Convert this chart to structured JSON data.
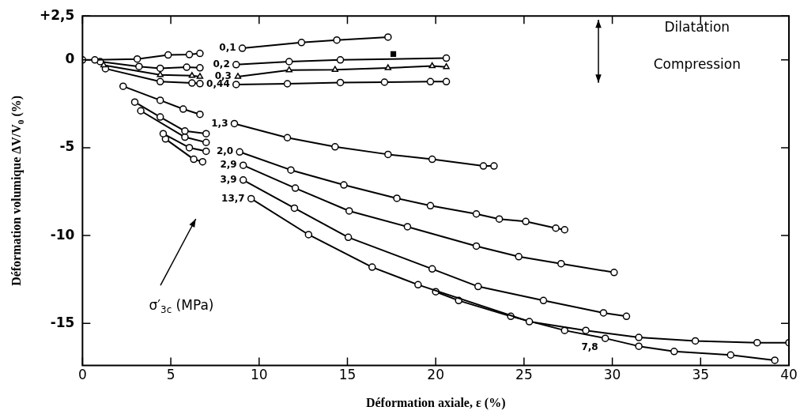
{
  "chart_data": {
    "type": "line",
    "xlabel": "Déformation axiale, ε (%)",
    "ylabel": "Déformation volumique ΔV/V$_{0}$ (%)",
    "xlim": [
      0,
      40
    ],
    "xticks": [
      0,
      5,
      10,
      15,
      20,
      25,
      30,
      35,
      40
    ],
    "ylim": [
      -17.4,
      2.5
    ],
    "yticks": [
      {
        "value": 2.5,
        "label": "+2,5"
      },
      0,
      -5,
      -10,
      -15
    ],
    "grid": false,
    "legend": false,
    "marker": "circle",
    "line_style": "solid",
    "annotations": [
      "Dilatation",
      "Compression",
      "σ′$_{3c}$ (MPa)"
    ],
    "series": [
      {
        "name": "0,1",
        "color": "#000000",
        "x": [
          0,
          0.7,
          3.1,
          4.85,
          6.05,
          6.65,
          7.9,
          9.05,
          12.4,
          14.4,
          17.3
        ],
        "values": [
          0,
          0,
          0.05,
          0.28,
          0.3,
          0.37,
          null,
          0.66,
          0.99,
          1.13,
          1.3
        ]
      },
      {
        "name": "0,2",
        "color": "#000000",
        "x": [
          1.0,
          3.2,
          4.4,
          5.9,
          6.65,
          7.7,
          8.7,
          11.7,
          14.6,
          20.6
        ],
        "values": [
          -0.1,
          -0.38,
          -0.48,
          -0.42,
          -0.45,
          null,
          -0.27,
          -0.1,
          0,
          0.1
        ]
      },
      {
        "type": "scatter",
        "color": "#000000",
        "marker": "square",
        "x": [
          17.6
        ],
        "values": [
          0.33
        ]
      },
      {
        "name": "0,3",
        "color": "#000000",
        "marker": "triangle",
        "x": [
          1.2,
          4.4,
          6.2,
          6.65,
          7.7,
          8.8,
          11.7,
          14.3,
          17.3,
          19.8,
          20.6
        ],
        "values": [
          -0.3,
          -0.85,
          -0.9,
          -0.95,
          null,
          -0.95,
          -0.58,
          -0.56,
          -0.46,
          -0.35,
          -0.4
        ]
      },
      {
        "name": "0,44",
        "color": "#000000",
        "x": [
          1.3,
          4.4,
          6.2,
          6.65,
          7.7,
          8.7,
          11.6,
          14.6,
          17.1,
          19.7,
          20.6
        ],
        "values": [
          -0.5,
          -1.24,
          -1.32,
          -1.35,
          null,
          -1.4,
          -1.36,
          -1.29,
          -1.27,
          -1.24,
          -1.24
        ]
      },
      {
        "name": "1,3",
        "color": "#000000",
        "x": [
          2.3,
          4.4,
          5.7,
          6.65,
          7.6,
          8.6,
          11.6,
          14.3,
          17.3,
          19.8,
          22.7,
          23.3
        ],
        "values": [
          -1.5,
          -2.3,
          -2.8,
          -3.1,
          null,
          -3.63,
          -4.43,
          -4.95,
          -5.38,
          -5.66,
          -6.04,
          -6.04
        ]
      },
      {
        "name": "2,0",
        "color": "#000000",
        "x": [
          2.96,
          4.4,
          5.8,
          7.0,
          7.9,
          8.9,
          11.8,
          14.8,
          17.8,
          19.7,
          22.3,
          23.6,
          25.1,
          26.8,
          27.3
        ],
        "values": [
          -2.4,
          -3.25,
          -4.05,
          -4.2,
          null,
          -5.24,
          -6.27,
          -7.12,
          -7.88,
          -8.3,
          -8.77,
          -9.06,
          -9.2,
          -9.58,
          -9.67
        ]
      },
      {
        "name": "2,9",
        "color": "#000000",
        "x": [
          3.3,
          5.8,
          7.0,
          8.0,
          9.1,
          12.05,
          15.1,
          18.4,
          22.3,
          24.7,
          27.1,
          30.1
        ],
        "values": [
          -2.9,
          -4.4,
          -4.7,
          null,
          -6.0,
          -7.3,
          -8.6,
          -9.5,
          -10.6,
          -11.2,
          -11.6,
          -12.1
        ]
      },
      {
        "name": "3,9",
        "color": "#000000",
        "x": [
          4.57,
          6.05,
          7.0,
          8.0,
          9.1,
          12.0,
          15.05,
          19.8,
          22.4,
          26.1,
          29.5,
          30.8
        ],
        "values": [
          -4.2,
          -5.0,
          -5.2,
          null,
          -6.84,
          -8.44,
          -10.1,
          -11.9,
          -12.9,
          -13.7,
          -14.4,
          -14.6
        ]
      },
      {
        "name": "13,7",
        "color": "#000000",
        "x": [
          4.7,
          6.3,
          6.8,
          8.1,
          9.55,
          12.8,
          16.4,
          19.0,
          25.3,
          28.5,
          31.5,
          34.7,
          38.2,
          40
        ],
        "values": [
          -4.5,
          -5.66,
          -5.8,
          null,
          -7.9,
          -9.95,
          -11.8,
          -12.8,
          -14.9,
          -15.4,
          -15.8,
          -16.0,
          -16.1,
          -16.1
        ]
      },
      {
        "name": "7,8",
        "color": "#000000",
        "x": [
          20.0,
          21.3,
          24.25,
          27.3,
          29.6,
          31.5,
          33.5,
          36.7,
          39.2
        ],
        "values": [
          -13.2,
          -13.7,
          -14.6,
          -15.4,
          -15.85,
          -16.3,
          -16.6,
          -16.8,
          -17.1
        ]
      }
    ]
  }
}
